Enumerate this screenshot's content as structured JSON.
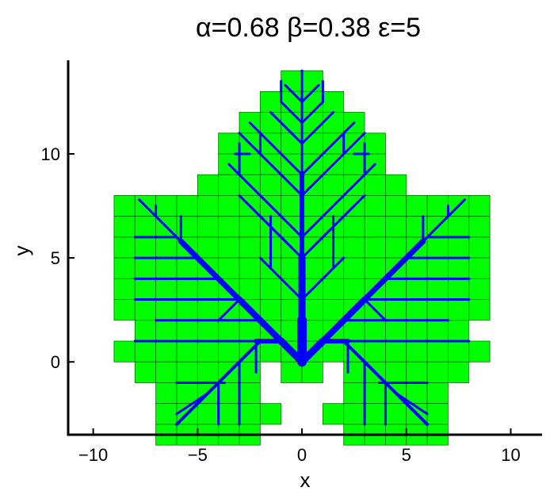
{
  "chart_data": {
    "type": "diagram",
    "title": "α=0.68 β=0.38 ε=5",
    "xlabel": "x",
    "ylabel": "y",
    "xlim": [
      -11.2,
      11.5
    ],
    "ylim": [
      -3.5,
      14.5
    ],
    "x_ticks": [
      -10,
      -5,
      0,
      5,
      10
    ],
    "x_tick_labels": [
      "−10",
      "−5",
      "0",
      "5",
      "10"
    ],
    "y_ticks": [
      0,
      5,
      10
    ],
    "y_tick_labels": [
      "0",
      "5",
      "10"
    ],
    "grid": false,
    "colors": {
      "cells": "#00ff00",
      "cell_edge": "#007000",
      "tree": "#0000ff",
      "axes": "#000000"
    },
    "cell_size": 1,
    "cell_rows": [
      {
        "y": 13.5,
        "xmin": -0.5,
        "xmax": 0.5
      },
      {
        "y": 12.5,
        "xmin": -1.5,
        "xmax": 1.5
      },
      {
        "y": 11.5,
        "xmin": -2.5,
        "xmax": 2.5
      },
      {
        "y": 10.5,
        "xmin": -3.5,
        "xmax": 3.5
      },
      {
        "y": 9.5,
        "xmin": -3.5,
        "xmax": 3.5
      },
      {
        "y": 8.5,
        "xmin": -4.5,
        "xmax": 4.5
      },
      {
        "y": 7.5,
        "xmin": -8.5,
        "xmax": 8.5
      },
      {
        "y": 6.5,
        "xmin": -8.5,
        "xmax": 8.5
      },
      {
        "y": 5.5,
        "xmin": -8.5,
        "xmax": 8.5
      },
      {
        "y": 4.5,
        "xmin": -8.5,
        "xmax": 8.5
      },
      {
        "y": 3.5,
        "xmin": -8.5,
        "xmax": 8.5
      },
      {
        "y": 2.5,
        "xmin": -8.5,
        "xmax": 8.5
      },
      {
        "y": 1.5,
        "xmin": -7.5,
        "xmax": 7.5
      },
      {
        "y": 0.5,
        "xmin": -8.5,
        "xmax": 8.5
      },
      {
        "y": -0.5,
        "xmin": -7.5,
        "xmax": -2.5
      },
      {
        "y": -0.5,
        "xmin": -0.5,
        "xmax": 0.5
      },
      {
        "y": -0.5,
        "xmin": 2.5,
        "xmax": 7.5
      },
      {
        "y": -1.5,
        "xmin": -6.5,
        "xmax": -2.5
      },
      {
        "y": -1.5,
        "xmin": 2.5,
        "xmax": 6.5
      },
      {
        "y": -2.5,
        "xmin": -6.5,
        "xmax": -1.5
      },
      {
        "y": -2.5,
        "xmin": 1.5,
        "xmax": 6.5
      },
      {
        "y": -3.5,
        "xmin": -6.5,
        "xmax": -2.5
      },
      {
        "y": -3.5,
        "xmin": 2.5,
        "xmax": 6.5
      }
    ],
    "branches": [
      {
        "x1": 0,
        "y1": 0,
        "x2": 0,
        "y2": 2,
        "w": 12
      },
      {
        "x1": 0,
        "y1": 2,
        "x2": 0,
        "y2": 5,
        "w": 9
      },
      {
        "x1": 0,
        "y1": 5,
        "x2": 0,
        "y2": 9,
        "w": 6
      },
      {
        "x1": 0,
        "y1": 9,
        "x2": 0,
        "y2": 14,
        "w": 3
      },
      {
        "x1": 0,
        "y1": 0,
        "x2": -1,
        "y2": 1,
        "w": 9
      },
      {
        "x1": -1,
        "y1": 1,
        "x2": -5.8,
        "y2": 5.8,
        "w": 7
      },
      {
        "x1": -5.8,
        "y1": 5.8,
        "x2": -7.8,
        "y2": 7.8,
        "w": 3
      },
      {
        "x1": 0,
        "y1": 0,
        "x2": 1,
        "y2": 1,
        "w": 9
      },
      {
        "x1": 1,
        "y1": 1,
        "x2": 5.8,
        "y2": 5.8,
        "w": 7
      },
      {
        "x1": 5.8,
        "y1": 5.8,
        "x2": 7.8,
        "y2": 7.8,
        "w": 3
      },
      {
        "x1": -1,
        "y1": 1,
        "x2": -2.2,
        "y2": 1,
        "w": 6
      },
      {
        "x1": -2.2,
        "y1": 1,
        "x2": -8,
        "y2": 1,
        "w": 3
      },
      {
        "x1": 1,
        "y1": 1,
        "x2": 2.2,
        "y2": 1,
        "w": 6
      },
      {
        "x1": 2.2,
        "y1": 1,
        "x2": 8,
        "y2": 1,
        "w": 3
      },
      {
        "x1": -2,
        "y1": 1,
        "x2": -6,
        "y2": -3,
        "w": 4
      },
      {
        "x1": 2,
        "y1": 1,
        "x2": 6,
        "y2": -3,
        "w": 4
      },
      {
        "x1": -1,
        "y1": 1,
        "x2": -3,
        "y2": 3,
        "w": 8
      },
      {
        "x1": -3,
        "y1": 3,
        "x2": -8,
        "y2": 3,
        "w": 3
      },
      {
        "x1": -2,
        "y1": 2,
        "x2": -7,
        "y2": 2,
        "w": 3
      },
      {
        "x1": -4,
        "y1": 4,
        "x2": -8,
        "y2": 4,
        "w": 3
      },
      {
        "x1": -5,
        "y1": 5,
        "x2": -8,
        "y2": 5,
        "w": 3
      },
      {
        "x1": -6,
        "y1": 6,
        "x2": -8,
        "y2": 6,
        "w": 3
      },
      {
        "x1": 1,
        "y1": 1,
        "x2": 3,
        "y2": 3,
        "w": 8
      },
      {
        "x1": 3,
        "y1": 3,
        "x2": 8,
        "y2": 3,
        "w": 3
      },
      {
        "x1": 2,
        "y1": 2,
        "x2": 7,
        "y2": 2,
        "w": 3
      },
      {
        "x1": 4,
        "y1": 4,
        "x2": 8,
        "y2": 4,
        "w": 3
      },
      {
        "x1": 5,
        "y1": 5,
        "x2": 8,
        "y2": 5,
        "w": 3
      },
      {
        "x1": 6,
        "y1": 6,
        "x2": 8,
        "y2": 6,
        "w": 3
      },
      {
        "x1": -3,
        "y1": 3,
        "x2": -4,
        "y2": 2,
        "w": 3
      },
      {
        "x1": 3,
        "y1": 3,
        "x2": 4,
        "y2": 2,
        "w": 3
      },
      {
        "x1": -5.8,
        "y1": 5.8,
        "x2": -5.8,
        "y2": 7,
        "w": 3
      },
      {
        "x1": 5.8,
        "y1": 5.8,
        "x2": 5.8,
        "y2": 7,
        "w": 3
      },
      {
        "x1": -7,
        "y1": 7,
        "x2": -7,
        "y2": 7.5,
        "w": 3
      },
      {
        "x1": 7,
        "y1": 7,
        "x2": 7,
        "y2": 7.5,
        "w": 3
      },
      {
        "x1": 0,
        "y1": 3,
        "x2": -2,
        "y2": 5,
        "w": 3
      },
      {
        "x1": 0,
        "y1": 3,
        "x2": 2,
        "y2": 5,
        "w": 3
      },
      {
        "x1": 0,
        "y1": 5,
        "x2": -3,
        "y2": 8,
        "w": 3
      },
      {
        "x1": 0,
        "y1": 5,
        "x2": 3,
        "y2": 8,
        "w": 3
      },
      {
        "x1": 0,
        "y1": 6,
        "x2": -3.5,
        "y2": 9.5,
        "w": 3
      },
      {
        "x1": 0,
        "y1": 6,
        "x2": 3.5,
        "y2": 9.5,
        "w": 3
      },
      {
        "x1": 0,
        "y1": 8,
        "x2": -3,
        "y2": 11,
        "w": 3
      },
      {
        "x1": 0,
        "y1": 8,
        "x2": 3,
        "y2": 11,
        "w": 3
      },
      {
        "x1": 0,
        "y1": 9,
        "x2": -2.5,
        "y2": 11.5,
        "w": 3
      },
      {
        "x1": 0,
        "y1": 9,
        "x2": 2.5,
        "y2": 11.5,
        "w": 3
      },
      {
        "x1": 0,
        "y1": 10.5,
        "x2": -1.5,
        "y2": 12,
        "w": 3
      },
      {
        "x1": 0,
        "y1": 10.5,
        "x2": 1.5,
        "y2": 12,
        "w": 3
      },
      {
        "x1": 0,
        "y1": 11.5,
        "x2": -1,
        "y2": 12.5,
        "w": 3
      },
      {
        "x1": 0,
        "y1": 11.5,
        "x2": 1,
        "y2": 12.5,
        "w": 3
      },
      {
        "x1": 0,
        "y1": 12.5,
        "x2": -0.8,
        "y2": 13.3,
        "w": 3
      },
      {
        "x1": 0,
        "y1": 12.5,
        "x2": 0.8,
        "y2": 13.3,
        "w": 3
      },
      {
        "x1": -2.5,
        "y1": 2.5,
        "x2": -3.5,
        "y2": 3.5,
        "w": 3
      },
      {
        "x1": -3,
        "y1": 9,
        "x2": -3,
        "y2": 10.5,
        "w": 3
      },
      {
        "x1": 3,
        "y1": 9,
        "x2": 3,
        "y2": 10.5,
        "w": 3
      },
      {
        "x1": -2,
        "y1": 11,
        "x2": -2,
        "y2": 10,
        "w": 3
      },
      {
        "x1": 2,
        "y1": 11,
        "x2": 2,
        "y2": 10,
        "w": 3
      },
      {
        "x1": -1,
        "y1": 12.5,
        "x2": -1,
        "y2": 13.5,
        "w": 3
      },
      {
        "x1": 1,
        "y1": 12.5,
        "x2": 1,
        "y2": 13.5,
        "w": 3
      },
      {
        "x1": -2.5,
        "y1": 10,
        "x2": -3.2,
        "y2": 10,
        "w": 3
      },
      {
        "x1": 2.5,
        "y1": 10,
        "x2": 3.2,
        "y2": 10,
        "w": 3
      },
      {
        "x1": -1.5,
        "y1": 4.5,
        "x2": -1.5,
        "y2": 7,
        "w": 3
      },
      {
        "x1": 1.5,
        "y1": 4.5,
        "x2": 1.5,
        "y2": 7,
        "w": 3
      },
      {
        "x1": -0.5,
        "y1": 5.5,
        "x2": -2.5,
        "y2": 7.5,
        "w": 3
      },
      {
        "x1": 0.5,
        "y1": 5.5,
        "x2": 2.5,
        "y2": 7.5,
        "w": 3
      },
      {
        "x1": -3.7,
        "y1": -1,
        "x2": -6,
        "y2": -1,
        "w": 3
      },
      {
        "x1": 3.7,
        "y1": -1,
        "x2": 6,
        "y2": -1,
        "w": 3
      },
      {
        "x1": -4,
        "y1": -1,
        "x2": -4,
        "y2": -3,
        "w": 3
      },
      {
        "x1": 4,
        "y1": -1,
        "x2": 4,
        "y2": -3,
        "w": 3
      },
      {
        "x1": -4.5,
        "y1": -1.5,
        "x2": -6,
        "y2": -2.5,
        "w": 3
      },
      {
        "x1": 4.5,
        "y1": -1.5,
        "x2": 6,
        "y2": -2.5,
        "w": 3
      },
      {
        "x1": -3,
        "y1": 0,
        "x2": -3,
        "y2": -3,
        "w": 3
      },
      {
        "x1": 3,
        "y1": 0,
        "x2": 3,
        "y2": -3,
        "w": 3
      },
      {
        "x1": -2.2,
        "y1": 1,
        "x2": -2.2,
        "y2": -0.5,
        "w": 3
      },
      {
        "x1": 2.2,
        "y1": 1,
        "x2": 2.2,
        "y2": -0.5,
        "w": 3
      }
    ]
  }
}
